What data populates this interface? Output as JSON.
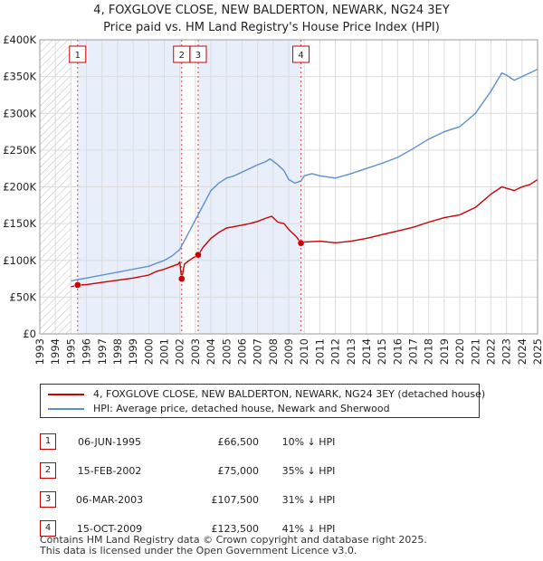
{
  "chart_data": {
    "type": "line",
    "title": "4, FOXGLOVE CLOSE, NEW BALDERTON, NEWARK, NG24 3EY",
    "subtitle": "Price paid vs. HM Land Registry's House Price Index (HPI)",
    "xlim": [
      1993,
      2025
    ],
    "ylim": [
      0,
      400000
    ],
    "x_ticks": [
      "1993",
      "1994",
      "1995",
      "1996",
      "1997",
      "1998",
      "1999",
      "2000",
      "2001",
      "2002",
      "2003",
      "2004",
      "2005",
      "2006",
      "2007",
      "2008",
      "2009",
      "2010",
      "2011",
      "2012",
      "2013",
      "2014",
      "2015",
      "2016",
      "2017",
      "2018",
      "2019",
      "2020",
      "2021",
      "2022",
      "2023",
      "2024",
      "2025"
    ],
    "y_ticks": [
      {
        "value": 0,
        "label": "£0"
      },
      {
        "value": 50000,
        "label": "£50K"
      },
      {
        "value": 100000,
        "label": "£100K"
      },
      {
        "value": 150000,
        "label": "£150K"
      },
      {
        "value": 200000,
        "label": "£200K"
      },
      {
        "value": 250000,
        "label": "£250K"
      },
      {
        "value": 300000,
        "label": "£300K"
      },
      {
        "value": 350000,
        "label": "£350K"
      },
      {
        "value": 400000,
        "label": "£400K"
      }
    ],
    "hatched_until": 1995.0,
    "shaded_bands": [
      [
        1995.43,
        2002.12
      ],
      [
        2003.18,
        2009.79
      ]
    ],
    "series": [
      {
        "name": "4, FOXGLOVE CLOSE, NEW BALDERTON, NEWARK, NG24 3EY (detached house)",
        "color": "#cc0000",
        "x": [
          1995.0,
          1995.43,
          1996.0,
          1997.0,
          1998.0,
          1999.0,
          2000.0,
          2000.5,
          2001.0,
          2001.5,
          2001.9,
          2002.0,
          2002.12,
          2002.3,
          2002.6,
          2002.9,
          2003.18,
          2003.5,
          2004.0,
          2004.5,
          2005.0,
          2005.5,
          2006.0,
          2006.5,
          2007.0,
          2007.5,
          2007.9,
          2008.3,
          2008.7,
          2009.0,
          2009.5,
          2009.79,
          2010.0,
          2011.0,
          2012.0,
          2013.0,
          2014.0,
          2015.0,
          2016.0,
          2017.0,
          2018.0,
          2019.0,
          2020.0,
          2021.0,
          2022.0,
          2022.7,
          2023.0,
          2023.5,
          2024.0,
          2024.5,
          2025.0
        ],
        "y": [
          64000,
          66500,
          67000,
          70000,
          73000,
          76000,
          80000,
          85000,
          88000,
          92000,
          95000,
          98000,
          75000,
          95000,
          100000,
          104000,
          107500,
          118000,
          130000,
          138000,
          144000,
          146000,
          148000,
          150000,
          153000,
          157000,
          160000,
          152000,
          150000,
          142000,
          132000,
          123500,
          125000,
          126000,
          124000,
          126000,
          130000,
          135000,
          140000,
          145000,
          152000,
          158000,
          162000,
          172000,
          190000,
          200000,
          198000,
          195000,
          200000,
          203000,
          210000
        ]
      },
      {
        "name": "HPI: Average price, detached house, Newark and Sherwood",
        "color": "#5b8fd0",
        "x": [
          1995.0,
          1995.43,
          1996.0,
          1997.0,
          1998.0,
          1999.0,
          2000.0,
          2000.5,
          2001.0,
          2001.5,
          2002.0,
          2002.5,
          2003.0,
          2003.5,
          2004.0,
          2004.5,
          2005.0,
          2005.5,
          2006.0,
          2006.5,
          2007.0,
          2007.5,
          2007.8,
          2008.3,
          2008.7,
          2009.0,
          2009.4,
          2009.79,
          2010.0,
          2010.5,
          2011.0,
          2012.0,
          2013.0,
          2014.0,
          2015.0,
          2016.0,
          2017.0,
          2018.0,
          2019.0,
          2020.0,
          2021.0,
          2022.0,
          2022.7,
          2023.0,
          2023.5,
          2024.0,
          2024.5,
          2025.0
        ],
        "y": [
          72000,
          74000,
          76000,
          80000,
          84000,
          88000,
          92000,
          96000,
          100000,
          106000,
          115000,
          135000,
          155000,
          175000,
          195000,
          205000,
          212000,
          215000,
          220000,
          225000,
          230000,
          234000,
          238000,
          230000,
          222000,
          210000,
          205000,
          208000,
          215000,
          218000,
          215000,
          212000,
          218000,
          225000,
          232000,
          240000,
          252000,
          265000,
          275000,
          282000,
          300000,
          330000,
          355000,
          352000,
          345000,
          350000,
          355000,
          360000
        ]
      }
    ],
    "sales": [
      {
        "label": "1",
        "x": 1995.43,
        "y": 66500
      },
      {
        "label": "2",
        "x": 2002.12,
        "y": 75000
      },
      {
        "label": "3",
        "x": 2003.18,
        "y": 107500
      },
      {
        "label": "4",
        "x": 2009.79,
        "y": 123500
      }
    ]
  },
  "legend": {
    "items": [
      {
        "label": "4, FOXGLOVE CLOSE, NEW BALDERTON, NEWARK, NG24 3EY (detached house)",
        "color": "#cc0000"
      },
      {
        "label": "HPI: Average price, detached house, Newark and Sherwood",
        "color": "#5b8fd0"
      }
    ]
  },
  "table": {
    "rows": [
      {
        "num": "1",
        "date": "06-JUN-1995",
        "price": "£66,500",
        "hpi": "10% ↓ HPI"
      },
      {
        "num": "2",
        "date": "15-FEB-2002",
        "price": "£75,000",
        "hpi": "35% ↓ HPI"
      },
      {
        "num": "3",
        "date": "06-MAR-2003",
        "price": "£107,500",
        "hpi": "31% ↓ HPI"
      },
      {
        "num": "4",
        "date": "15-OCT-2009",
        "price": "£123,500",
        "hpi": "41% ↓ HPI"
      }
    ]
  },
  "footer": {
    "line1": "Contains HM Land Registry data © Crown copyright and database right 2025.",
    "line2": "This data is licensed under the Open Government Licence v3.0."
  }
}
